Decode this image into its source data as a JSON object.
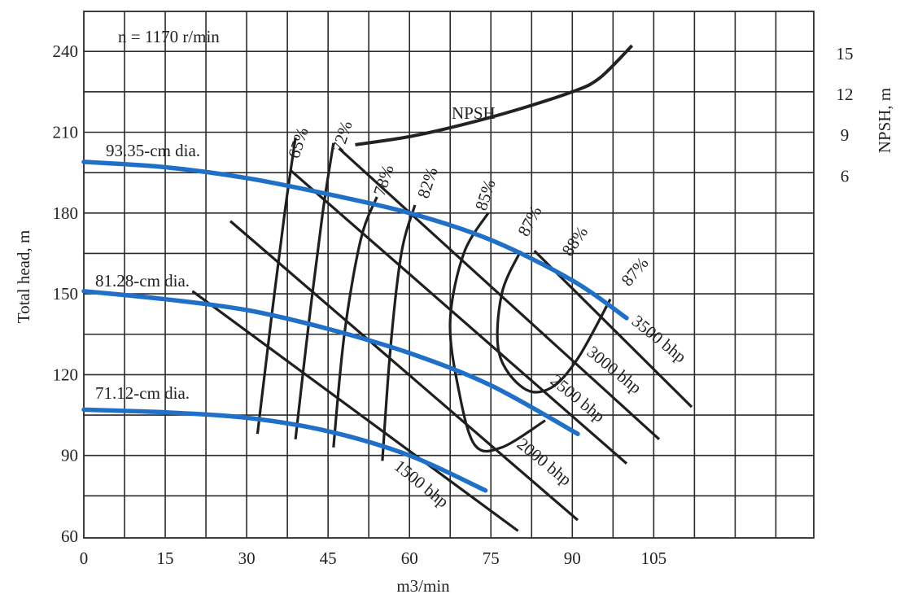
{
  "chart_data": {
    "type": "line",
    "title": "n = 1170 r/min",
    "xlabel": "m3/min",
    "ylabel": "Total head, m",
    "y2label": "NPSH, m",
    "xlim": [
      0,
      105
    ],
    "ylim": [
      60,
      240
    ],
    "grid": true,
    "x_ticks": [
      "0",
      "15",
      "30",
      "45",
      "60",
      "75",
      "90",
      "105"
    ],
    "y_ticks": [
      "60",
      "90",
      "120",
      "150",
      "180",
      "210",
      "240"
    ],
    "y2_ticks": [
      "6",
      "9",
      "12",
      "15"
    ],
    "head_curves": [
      {
        "name": "93.35-cm dia.",
        "x": [
          0,
          15,
          30,
          45,
          60,
          75,
          90,
          100
        ],
        "y": [
          199,
          197,
          193,
          187,
          180,
          170,
          155,
          141
        ]
      },
      {
        "name": "81.28-cm dia.",
        "x": [
          0,
          15,
          30,
          45,
          60,
          75,
          91
        ],
        "y": [
          151,
          148,
          144,
          137,
          128,
          116,
          98
        ]
      },
      {
        "name": "71.12-cm dia.",
        "x": [
          0,
          15,
          30,
          45,
          60,
          74
        ],
        "y": [
          107,
          106,
          104,
          99,
          90,
          77
        ]
      }
    ],
    "npsh_curve": {
      "name": "NPSH",
      "x": [
        50,
        60,
        70,
        80,
        90,
        95,
        101
      ],
      "y": [
        8.3,
        8.9,
        9.8,
        10.9,
        12.2,
        13.2,
        15.6
      ]
    },
    "efficiency_contours": [
      {
        "label": "65%",
        "x": [
          32,
          34.5,
          37,
          39
        ],
        "y": [
          98,
          140,
          180,
          208
        ]
      },
      {
        "label": "72%",
        "x": [
          39,
          41.5,
          44,
          46
        ],
        "y": [
          96,
          140,
          180,
          206
        ]
      },
      {
        "label": "78%",
        "x": [
          46,
          48,
          51,
          54
        ],
        "y": [
          93,
          135,
          170,
          186
        ]
      },
      {
        "label": "82%",
        "x": [
          55,
          56.5,
          58.5,
          61
        ],
        "y": [
          88,
          130,
          165,
          183
        ]
      },
      {
        "label": "85%",
        "x": [
          85,
          77,
          72,
          69,
          67.5,
          70,
          74.5
        ],
        "y": [
          103,
          93,
          94,
          115,
          140,
          165,
          180
        ]
      },
      {
        "label": "87%",
        "x": [
          80.5,
          77,
          76.5,
          81,
          86,
          91,
          97
        ],
        "y": [
          166,
          150,
          128,
          115,
          115,
          126,
          148
        ]
      },
      {
        "label": "88%",
        "x": [],
        "y": []
      },
      {
        "label": "87%",
        "x": [],
        "y": []
      }
    ],
    "power_lines": [
      {
        "label": "1500 bhp",
        "x": [
          20,
          80
        ],
        "y": [
          151,
          62
        ]
      },
      {
        "label": "2000 bhp",
        "x": [
          27,
          91
        ],
        "y": [
          177,
          66
        ]
      },
      {
        "label": "2500 bhp",
        "x": [
          38,
          100
        ],
        "y": [
          196,
          87
        ]
      },
      {
        "label": "3000 bhp",
        "x": [
          47,
          106
        ],
        "y": [
          204,
          96
        ]
      },
      {
        "label": "3500 bhp",
        "x": [
          83,
          112
        ],
        "y": [
          166,
          108
        ]
      }
    ]
  }
}
